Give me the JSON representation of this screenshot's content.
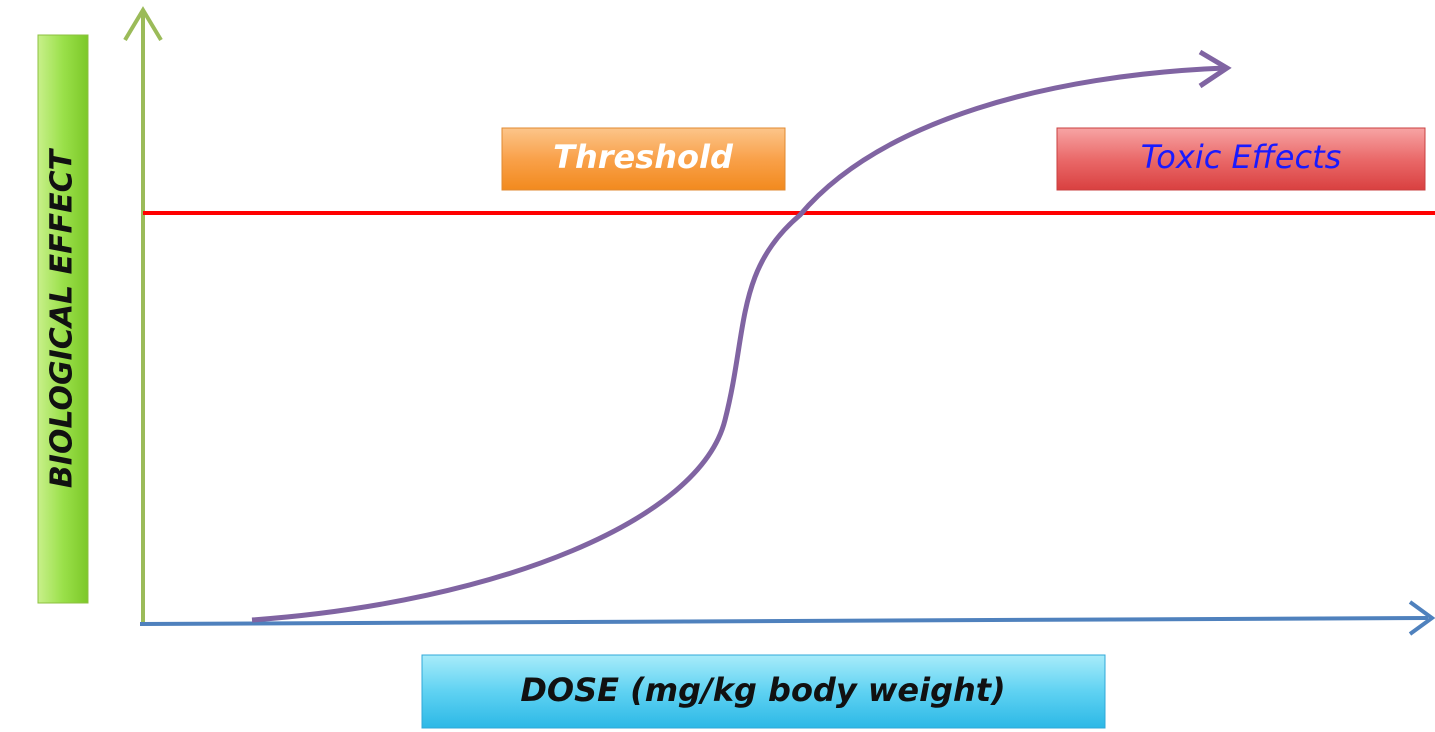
{
  "y_axis_label": "BIOLOGICAL EFFECT",
  "x_axis_label": "DOSE (mg/kg body weight)",
  "labels": {
    "threshold": "Threshold",
    "toxic_effects": "Toxic Effects"
  }
}
